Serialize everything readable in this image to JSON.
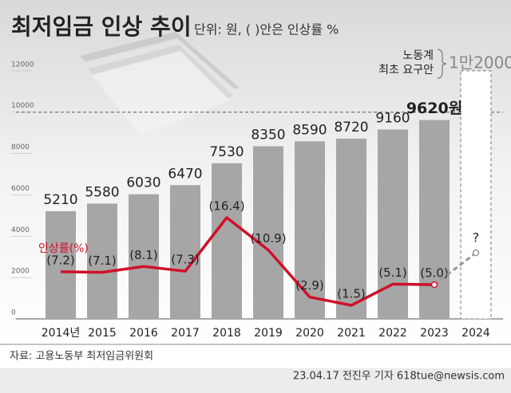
{
  "chart_data": {
    "type": "bar",
    "title": "최저임금 인상 추이",
    "subtitle": "단위: 원, ( )안은 인상률 %",
    "categories": [
      "2014년",
      "2015",
      "2016",
      "2017",
      "2018",
      "2019",
      "2020",
      "2021",
      "2022",
      "2023",
      "2024"
    ],
    "ylim": [
      0,
      13500
    ],
    "yticks": [
      0,
      2000,
      4000,
      6000,
      8000,
      10000,
      12000
    ],
    "y2lim": [
      -0.8,
      46.6
    ],
    "ref_line": 10000,
    "series": [
      {
        "color": "#a6a6a6",
        "values": [
          5210,
          5580,
          6030,
          6470,
          7530,
          8350,
          8590,
          8720,
          9160,
          9620,
          null
        ],
        "value_labels": [
          "5210",
          "5580",
          "6030",
          "6470",
          "7530",
          "8350",
          "8590",
          "8720",
          "9160",
          "9620원",
          null
        ]
      },
      {
        "name": "인상률(%)",
        "color": "#d0102a",
        "axis": "y2",
        "values": [
          7.2,
          7.1,
          8.1,
          7.3,
          16.4,
          10.9,
          2.9,
          1.5,
          5.1,
          5.0,
          null
        ],
        "value_labels": [
          "(7.2)",
          "(7.1)",
          "(8.1)",
          "(7.3)",
          "(16.4)",
          "(10.9)",
          "(2.9)",
          "(1.5)",
          "(5.1)",
          "(5.0)",
          "?"
        ]
      }
    ],
    "demand": {
      "label_lines": [
        "노동계",
        "최초 요구안"
      ],
      "value": 12000,
      "value_label": "1만2000"
    },
    "source": "자료: 고용노동부 최저임금위원회",
    "credit": "23.04.17 전진우 기자 618tue@newsis.com"
  }
}
